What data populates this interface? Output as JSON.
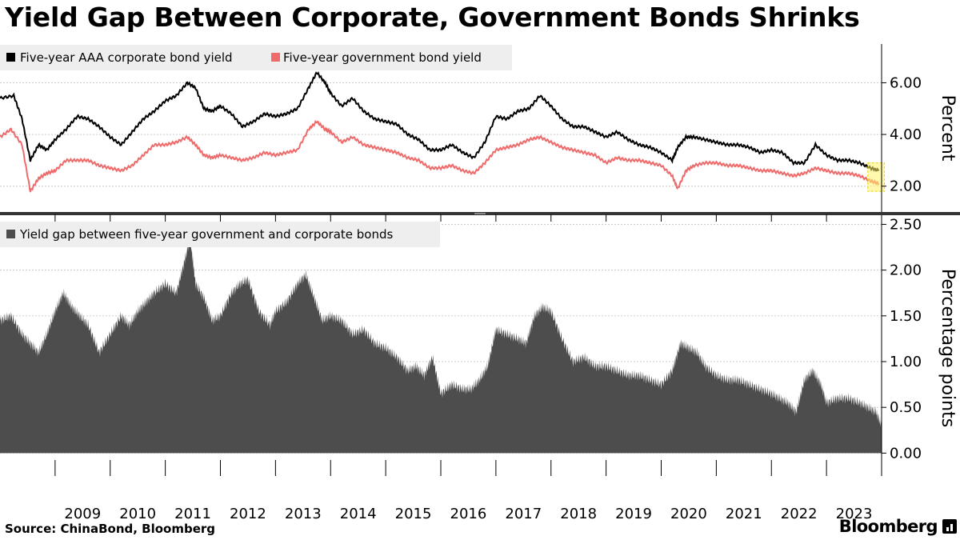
{
  "title": "Yield Gap Between Corporate, Government Bonds Shrinks",
  "source": "Source: ChinaBond, Bloomberg",
  "logo": "Bloomberg",
  "colors": {
    "corporate": "#000000",
    "government": "#ef6b6b",
    "gap": "#4d4d4d",
    "highlight": "#fff36a"
  },
  "chart_data": [
    {
      "type": "line",
      "ylabel": "Percent",
      "ylim": [
        1.0,
        7.5
      ],
      "yticks": [
        2.0,
        4.0,
        6.0
      ],
      "ytick_labels": [
        "2.00",
        "4.00",
        "6.00"
      ],
      "grid": true,
      "legend_position": "top-left",
      "series": [
        {
          "name": "Five-year AAA corporate bond yield",
          "x": [
            2008.0,
            2008.25,
            2008.4,
            2008.55,
            2008.7,
            2008.85,
            2009.0,
            2009.2,
            2009.4,
            2009.6,
            2009.8,
            2010.0,
            2010.2,
            2010.4,
            2010.6,
            2010.8,
            2011.0,
            2011.2,
            2011.4,
            2011.55,
            2011.7,
            2011.85,
            2012.0,
            2012.2,
            2012.4,
            2012.6,
            2012.8,
            2013.0,
            2013.2,
            2013.4,
            2013.6,
            2013.75,
            2013.9,
            2014.0,
            2014.2,
            2014.4,
            2014.6,
            2014.8,
            2015.0,
            2015.2,
            2015.4,
            2015.6,
            2015.8,
            2016.0,
            2016.2,
            2016.4,
            2016.6,
            2016.8,
            2017.0,
            2017.2,
            2017.4,
            2017.6,
            2017.8,
            2018.0,
            2018.2,
            2018.4,
            2018.6,
            2018.8,
            2019.0,
            2019.2,
            2019.4,
            2019.6,
            2019.8,
            2020.0,
            2020.2,
            2020.3,
            2020.45,
            2020.6,
            2020.8,
            2021.0,
            2021.2,
            2021.4,
            2021.6,
            2021.8,
            2022.0,
            2022.2,
            2022.4,
            2022.6,
            2022.8,
            2023.0,
            2023.2,
            2023.4,
            2023.6,
            2023.8,
            2023.95
          ],
          "values": [
            5.4,
            5.5,
            4.6,
            3.0,
            3.6,
            3.4,
            3.8,
            4.2,
            4.7,
            4.6,
            4.3,
            3.9,
            3.6,
            4.1,
            4.6,
            4.9,
            5.3,
            5.5,
            6.0,
            5.8,
            5.0,
            4.9,
            5.1,
            4.8,
            4.3,
            4.5,
            4.8,
            4.7,
            4.8,
            5.0,
            5.8,
            6.4,
            6.0,
            5.6,
            5.1,
            5.4,
            4.9,
            4.6,
            4.5,
            4.4,
            4.0,
            3.8,
            3.4,
            3.4,
            3.6,
            3.3,
            3.1,
            3.7,
            4.7,
            4.6,
            4.9,
            5.0,
            5.5,
            5.1,
            4.6,
            4.3,
            4.3,
            4.1,
            3.9,
            4.1,
            3.8,
            3.6,
            3.5,
            3.3,
            3.0,
            3.5,
            3.9,
            3.9,
            3.8,
            3.7,
            3.6,
            3.6,
            3.5,
            3.3,
            3.4,
            3.3,
            2.9,
            2.9,
            3.6,
            3.2,
            3.0,
            3.0,
            2.9,
            2.7,
            2.6
          ]
        },
        {
          "name": "Five-year government bond yield",
          "x": [
            2008.0,
            2008.2,
            2008.4,
            2008.55,
            2008.7,
            2008.85,
            2009.0,
            2009.2,
            2009.4,
            2009.6,
            2009.8,
            2010.0,
            2010.2,
            2010.4,
            2010.6,
            2010.8,
            2011.0,
            2011.2,
            2011.4,
            2011.55,
            2011.7,
            2011.85,
            2012.0,
            2012.2,
            2012.4,
            2012.6,
            2012.8,
            2013.0,
            2013.2,
            2013.4,
            2013.6,
            2013.75,
            2013.9,
            2014.0,
            2014.2,
            2014.4,
            2014.6,
            2014.8,
            2015.0,
            2015.2,
            2015.4,
            2015.6,
            2015.8,
            2016.0,
            2016.2,
            2016.4,
            2016.6,
            2016.8,
            2017.0,
            2017.2,
            2017.4,
            2017.6,
            2017.8,
            2018.0,
            2018.2,
            2018.4,
            2018.6,
            2018.8,
            2019.0,
            2019.2,
            2019.4,
            2019.6,
            2019.8,
            2020.0,
            2020.2,
            2020.3,
            2020.45,
            2020.6,
            2020.8,
            2021.0,
            2021.2,
            2021.4,
            2021.6,
            2021.8,
            2022.0,
            2022.2,
            2022.4,
            2022.6,
            2022.8,
            2023.0,
            2023.2,
            2023.4,
            2023.6,
            2023.8,
            2023.95
          ],
          "values": [
            3.9,
            4.2,
            3.6,
            1.8,
            2.3,
            2.5,
            2.6,
            3.0,
            3.0,
            3.0,
            2.8,
            2.7,
            2.6,
            2.8,
            3.2,
            3.6,
            3.6,
            3.7,
            3.9,
            3.6,
            3.2,
            3.1,
            3.2,
            3.1,
            3.0,
            3.1,
            3.3,
            3.2,
            3.3,
            3.4,
            4.2,
            4.5,
            4.2,
            4.1,
            3.7,
            3.9,
            3.6,
            3.5,
            3.4,
            3.3,
            3.1,
            3.0,
            2.7,
            2.7,
            2.8,
            2.6,
            2.5,
            2.9,
            3.4,
            3.5,
            3.6,
            3.8,
            3.9,
            3.7,
            3.5,
            3.4,
            3.3,
            3.2,
            2.9,
            3.1,
            3.0,
            3.0,
            2.9,
            2.8,
            2.4,
            1.9,
            2.6,
            2.8,
            2.9,
            2.9,
            2.8,
            2.8,
            2.7,
            2.6,
            2.6,
            2.5,
            2.4,
            2.5,
            2.7,
            2.6,
            2.5,
            2.5,
            2.4,
            2.2,
            2.1
          ]
        }
      ]
    },
    {
      "type": "area",
      "ylabel": "Percentage points",
      "ylim": [
        -0.25,
        2.6
      ],
      "yticks": [
        0.0,
        0.5,
        1.0,
        1.5,
        2.0,
        2.5
      ],
      "ytick_labels": [
        "0.00",
        "0.50",
        "1.00",
        "1.50",
        "2.00",
        "2.50"
      ],
      "grid": true,
      "legend_position": "top-left",
      "series": [
        {
          "name": "Yield gap between five-year government and corporate bonds",
          "x": [
            2008.0,
            2008.2,
            2008.4,
            2008.55,
            2008.7,
            2008.85,
            2009.0,
            2009.15,
            2009.3,
            2009.45,
            2009.6,
            2009.8,
            2010.0,
            2010.2,
            2010.35,
            2010.5,
            2010.65,
            2010.8,
            2011.0,
            2011.2,
            2011.35,
            2011.45,
            2011.55,
            2011.7,
            2011.85,
            2012.0,
            2012.2,
            2012.35,
            2012.5,
            2012.7,
            2012.9,
            2013.0,
            2013.2,
            2013.4,
            2013.55,
            2013.7,
            2013.85,
            2014.0,
            2014.2,
            2014.4,
            2014.6,
            2014.8,
            2015.0,
            2015.2,
            2015.4,
            2015.55,
            2015.7,
            2015.85,
            2016.0,
            2016.2,
            2016.4,
            2016.55,
            2016.7,
            2016.85,
            2017.0,
            2017.2,
            2017.4,
            2017.55,
            2017.7,
            2017.85,
            2018.0,
            2018.2,
            2018.4,
            2018.6,
            2018.8,
            2019.0,
            2019.2,
            2019.4,
            2019.6,
            2019.8,
            2020.0,
            2020.2,
            2020.35,
            2020.5,
            2020.65,
            2020.8,
            2021.0,
            2021.2,
            2021.4,
            2021.6,
            2021.8,
            2022.0,
            2022.15,
            2022.3,
            2022.45,
            2022.6,
            2022.75,
            2022.9,
            2023.0,
            2023.2,
            2023.4,
            2023.6,
            2023.75,
            2023.9,
            2024.0
          ],
          "values": [
            1.45,
            1.5,
            1.3,
            1.2,
            1.1,
            1.3,
            1.55,
            1.75,
            1.6,
            1.5,
            1.4,
            1.1,
            1.3,
            1.5,
            1.4,
            1.55,
            1.65,
            1.75,
            1.85,
            1.75,
            2.1,
            2.35,
            1.85,
            1.7,
            1.45,
            1.5,
            1.75,
            1.85,
            1.9,
            1.55,
            1.4,
            1.55,
            1.65,
            1.85,
            1.95,
            1.7,
            1.45,
            1.5,
            1.45,
            1.3,
            1.35,
            1.2,
            1.15,
            1.05,
            0.9,
            0.95,
            0.85,
            1.05,
            0.65,
            0.75,
            0.7,
            0.7,
            0.8,
            0.95,
            1.35,
            1.3,
            1.25,
            1.2,
            1.5,
            1.6,
            1.55,
            1.25,
            1.0,
            1.05,
            0.95,
            0.95,
            0.9,
            0.85,
            0.85,
            0.8,
            0.75,
            0.9,
            1.2,
            1.15,
            1.1,
            0.95,
            0.85,
            0.8,
            0.8,
            0.75,
            0.7,
            0.65,
            0.6,
            0.55,
            0.45,
            0.8,
            0.9,
            0.75,
            0.55,
            0.6,
            0.6,
            0.55,
            0.5,
            0.45,
            0.3
          ]
        }
      ]
    }
  ],
  "x_axis": {
    "labels": [
      "2009",
      "2010",
      "2011",
      "2012",
      "2013",
      "2014",
      "2015",
      "2016",
      "2017",
      "2018",
      "2019",
      "2020",
      "2021",
      "2022",
      "2023"
    ],
    "range": [
      2008.0,
      2024.0
    ]
  }
}
